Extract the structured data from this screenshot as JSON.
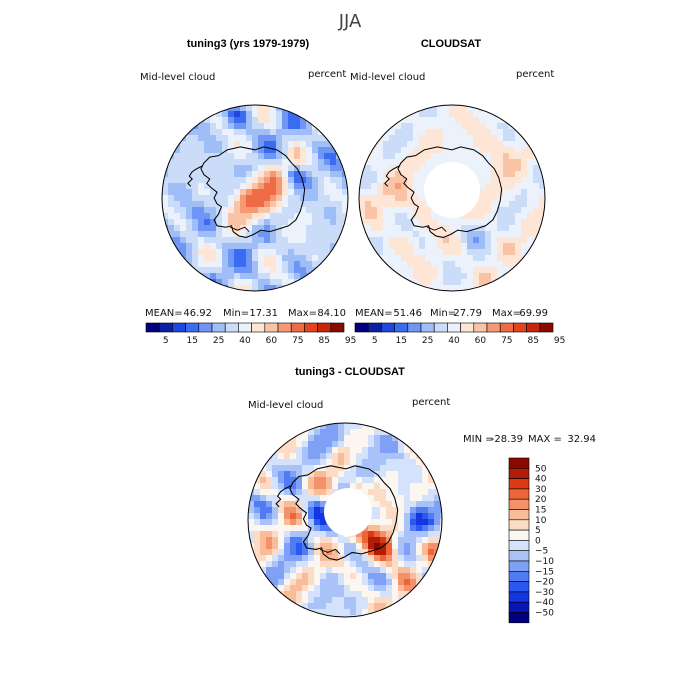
{
  "page": {
    "title": "JJA",
    "left_panel_title": "tuning3 (yrs 1979-1979)",
    "right_panel_title": "CLOUDSAT",
    "diff_panel_title": "tuning3 - CLOUDSAT",
    "variable": "Mid-level cloud",
    "units": "percent"
  },
  "chart_data": [
    {
      "type": "heatmap",
      "title": "tuning3 (yrs 1979-1979)",
      "subtitle": "Mid-level cloud",
      "units": "percent",
      "projection": "south polar stereographic",
      "stats": {
        "mean_label": "MEAN=",
        "mean": "46.92",
        "min_label": "Min=",
        "min": "17.31",
        "max_label": "Max=",
        "max": "84.10"
      },
      "levels": [
        5,
        15,
        25,
        40,
        60,
        75,
        85,
        95
      ],
      "colors": [
        "#00007f",
        "#0d1fa6",
        "#1f47e0",
        "#3a6cf2",
        "#6f96f5",
        "#9fbdf7",
        "#cadcf8",
        "#ecf2fb",
        "#fde6d6",
        "#f9c4a5",
        "#f59a75",
        "#ef6b45",
        "#e4431e",
        "#c8260d",
        "#8b0a00"
      ]
    },
    {
      "type": "heatmap",
      "title": "CLOUDSAT",
      "subtitle": "Mid-level cloud",
      "units": "percent",
      "projection": "south polar stereographic",
      "stats": {
        "mean_label": "MEAN=",
        "mean": "51.46",
        "min_label": "Min=",
        "min": "27.79",
        "max_label": "Max=",
        "max": "69.99"
      },
      "levels": [
        5,
        15,
        25,
        40,
        60,
        75,
        85,
        95
      ],
      "missing_region": "pole (no data)"
    },
    {
      "type": "heatmap",
      "title": "tuning3 - CLOUDSAT",
      "subtitle": "Mid-level cloud",
      "units": "percent",
      "projection": "south polar stereographic",
      "stats": {
        "min_label": "MIN =",
        "min": "-28.39",
        "max_label": "MAX =",
        "max": "32.94"
      },
      "levels": [
        -50,
        -40,
        -30,
        -20,
        -15,
        -10,
        -5,
        0,
        5,
        10,
        15,
        20,
        30,
        40,
        50
      ],
      "colors": [
        "#00007f",
        "#0a14b8",
        "#1436e0",
        "#2b58f0",
        "#4f7cf3",
        "#7fa0f5",
        "#a9c2f8",
        "#d4e2fb",
        "#fbf6f0",
        "#fcdcc6",
        "#f9bc98",
        "#f3916a",
        "#ec6438",
        "#dc3a14",
        "#b41d05",
        "#8b0a00"
      ]
    }
  ]
}
